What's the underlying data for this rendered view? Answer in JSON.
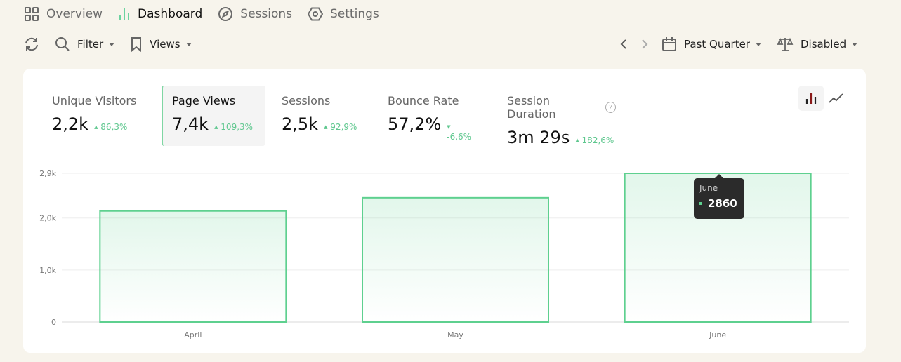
{
  "nav": [
    {
      "label": "Overview",
      "icon": "grid-icon"
    },
    {
      "label": "Dashboard",
      "icon": "bar-chart-icon",
      "active": true
    },
    {
      "label": "Sessions",
      "icon": "compass-icon"
    },
    {
      "label": "Settings",
      "icon": "hexagon-settings-icon"
    }
  ],
  "toolbar": {
    "filter": "Filter",
    "views": "Views",
    "period": "Past Quarter",
    "compare": "Disabled"
  },
  "metrics": [
    {
      "label": "Unique Visitors",
      "value": "2,2k",
      "delta": "86,3%",
      "dir": "up"
    },
    {
      "label": "Page Views",
      "value": "7,4k",
      "delta": "109,3%",
      "dir": "up",
      "active": true
    },
    {
      "label": "Sessions",
      "value": "2,5k",
      "delta": "92,9%",
      "dir": "up"
    },
    {
      "label": "Bounce Rate",
      "value": "57,2%",
      "delta": "-6,6%",
      "dir": "down"
    },
    {
      "label": "Session Duration",
      "value": "3m 29s",
      "delta": "182,6%",
      "dir": "up"
    }
  ],
  "help": "?",
  "colors": {
    "accent": "#5ed08f",
    "background": "#f7f4ec"
  },
  "tooltip": {
    "month": "June",
    "value": "2860"
  },
  "chart_data": {
    "type": "bar",
    "categories": [
      "April",
      "May",
      "June"
    ],
    "values": [
      2135,
      2390,
      2860
    ],
    "ylim": [
      0,
      2860
    ],
    "yticks": [
      {
        "v": 0,
        "label": "0"
      },
      {
        "v": 1000,
        "label": "1,0k"
      },
      {
        "v": 2000,
        "label": "2,0k"
      },
      {
        "v": 2860,
        "label": "2,9k"
      }
    ],
    "grid": true
  }
}
